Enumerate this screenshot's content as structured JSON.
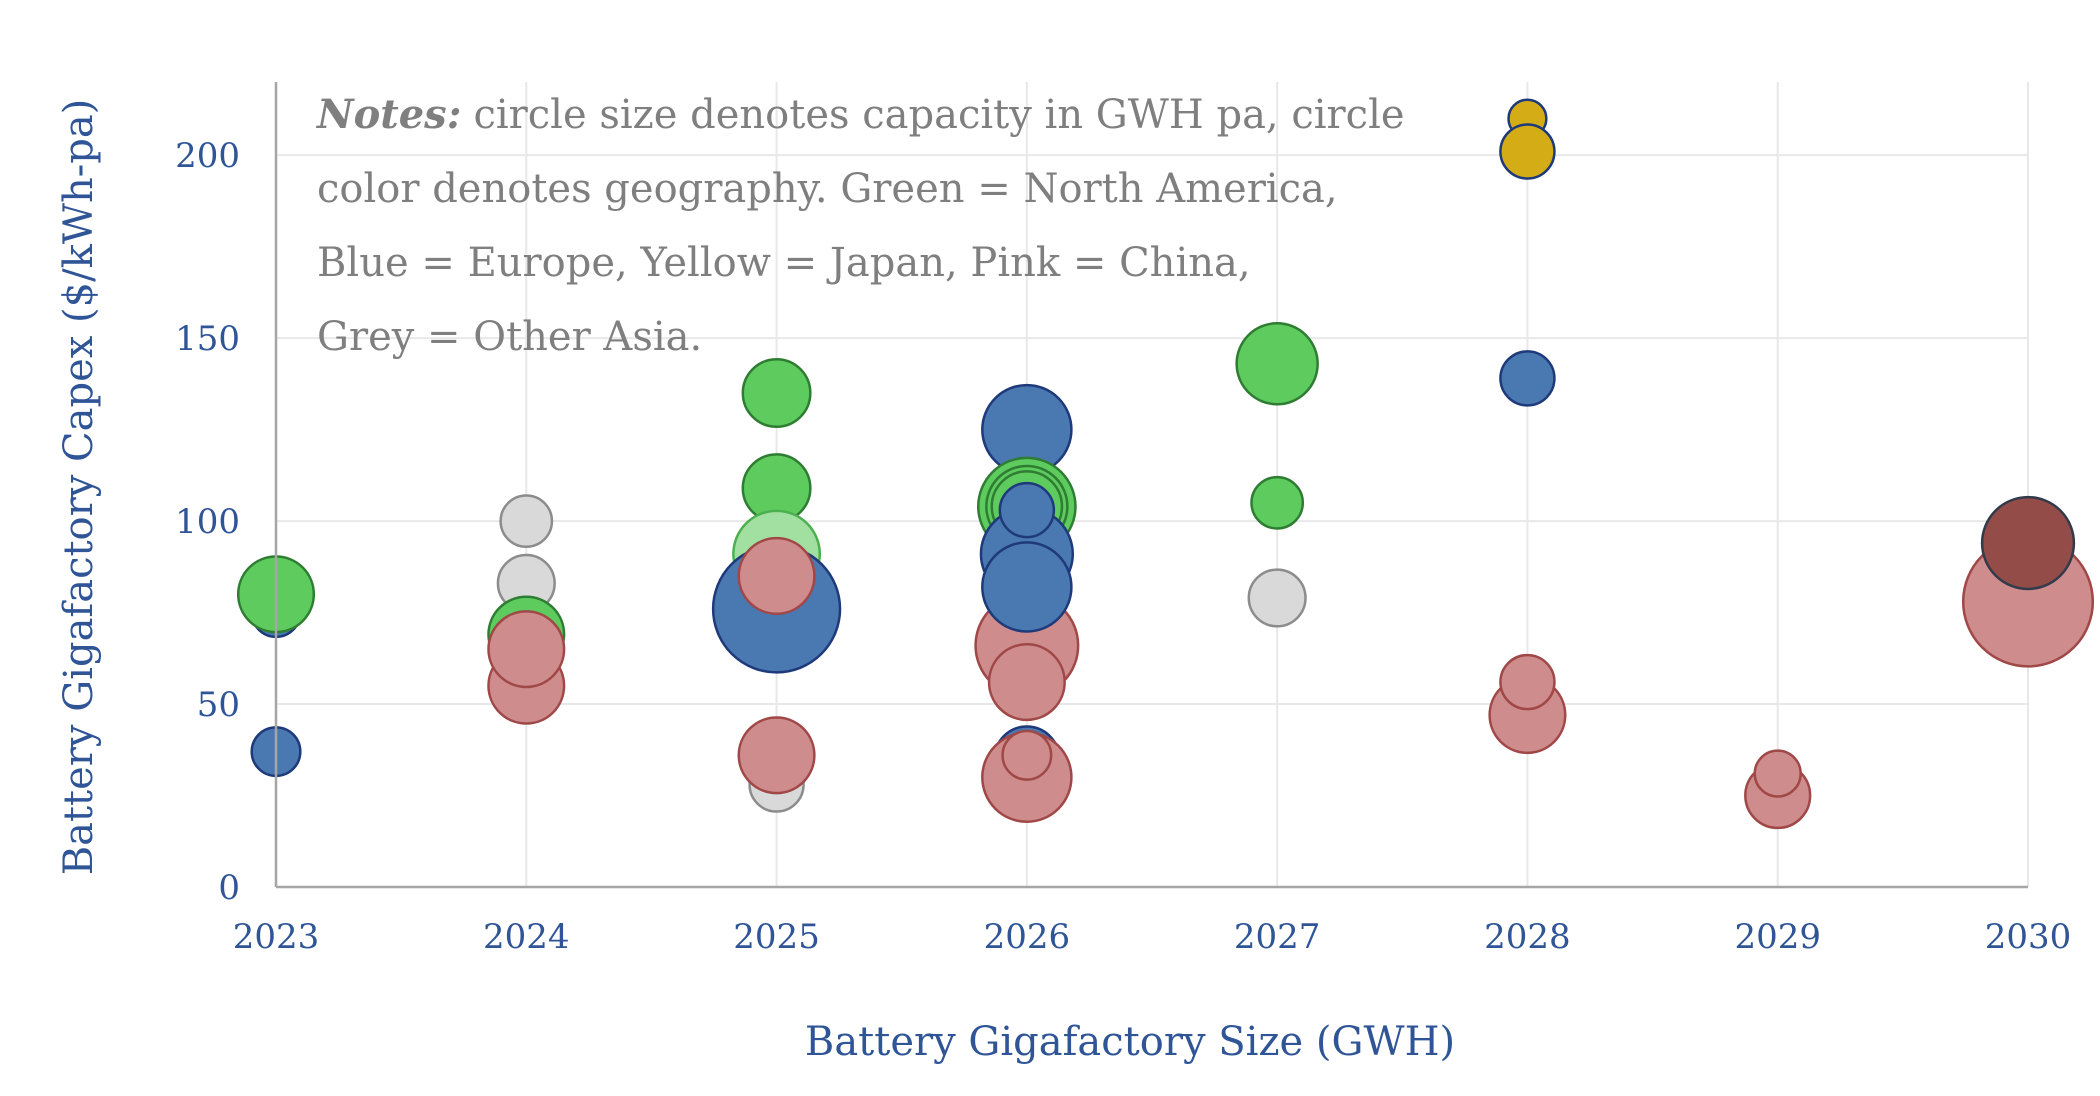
{
  "chart_data": {
    "type": "scatter",
    "variant": "bubble",
    "xlabel": "Battery Gigafactory Size (GWH)",
    "ylabel": "Battery Gigafactory Capex ($/kWh-pa)",
    "x_ticks": [
      "2023",
      "2024",
      "2025",
      "2026",
      "2027",
      "2028",
      "2029",
      "2030"
    ],
    "xlim": [
      2023,
      2030
    ],
    "ylim": [
      0,
      220
    ],
    "y_ticks": [
      0,
      50,
      100,
      150,
      200
    ],
    "grid": true,
    "notes": {
      "bold": "Notes:",
      "lines": [
        "circle size denotes capacity in GWH pa, circle",
        "color denotes geography. Green = North America,",
        "Blue = Europe, Yellow = Japan, Pink = China,",
        "Grey = Other Asia."
      ]
    },
    "colors": {
      "green": "#5ecb5e",
      "green_edge": "#2e7d32",
      "light_green": "#a2e0a2",
      "light_green_edge": "#4caf50",
      "blue": "#4a78b0",
      "blue_edge": "#1f3a7a",
      "yellow": "#d4ac16",
      "yellow_edge": "#1f3a7a",
      "pink": "#cf8c8c",
      "pink_edge": "#a04848",
      "grey": "#d9d9d9",
      "grey_edge": "#8c8c8c",
      "brown": "#934c48",
      "brown_edge": "#333a4a"
    },
    "points": [
      {
        "x": 2023,
        "y": 75,
        "size": 18,
        "color": "blue"
      },
      {
        "x": 2023,
        "y": 80,
        "size": 28,
        "color": "green"
      },
      {
        "x": 2023,
        "y": 37,
        "size": 18,
        "color": "blue"
      },
      {
        "x": 2024,
        "y": 100,
        "size": 19,
        "color": "grey"
      },
      {
        "x": 2024,
        "y": 83,
        "size": 21,
        "color": "grey"
      },
      {
        "x": 2024,
        "y": 69,
        "size": 28,
        "color": "green"
      },
      {
        "x": 2024,
        "y": 55,
        "size": 28,
        "color": "pink"
      },
      {
        "x": 2024,
        "y": 65,
        "size": 28,
        "color": "pink"
      },
      {
        "x": 2025,
        "y": 135,
        "size": 25,
        "color": "green"
      },
      {
        "x": 2025,
        "y": 109,
        "size": 25,
        "color": "green"
      },
      {
        "x": 2025,
        "y": 91,
        "size": 32,
        "color": "light_green"
      },
      {
        "x": 2025,
        "y": 76,
        "size": 47,
        "color": "blue"
      },
      {
        "x": 2025,
        "y": 85,
        "size": 28,
        "color": "pink"
      },
      {
        "x": 2025,
        "y": 28,
        "size": 20,
        "color": "grey"
      },
      {
        "x": 2025,
        "y": 36,
        "size": 28,
        "color": "pink"
      },
      {
        "x": 2026,
        "y": 125,
        "size": 33,
        "color": "blue"
      },
      {
        "x": 2026,
        "y": 104,
        "size": 36,
        "color": "green"
      },
      {
        "x": 2026,
        "y": 104,
        "size": 30,
        "color": "green"
      },
      {
        "x": 2026,
        "y": 104,
        "size": 26,
        "color": "green"
      },
      {
        "x": 2026,
        "y": 91,
        "size": 34,
        "color": "blue"
      },
      {
        "x": 2026,
        "y": 103,
        "size": 20,
        "color": "blue"
      },
      {
        "x": 2026,
        "y": 66,
        "size": 38,
        "color": "pink"
      },
      {
        "x": 2026,
        "y": 82,
        "size": 33,
        "color": "blue"
      },
      {
        "x": 2026,
        "y": 56,
        "size": 28,
        "color": "pink"
      },
      {
        "x": 2026,
        "y": 35,
        "size": 24,
        "color": "blue"
      },
      {
        "x": 2026,
        "y": 30,
        "size": 33,
        "color": "pink"
      },
      {
        "x": 2026,
        "y": 36,
        "size": 18,
        "color": "pink"
      },
      {
        "x": 2027,
        "y": 143,
        "size": 30,
        "color": "green"
      },
      {
        "x": 2027,
        "y": 105,
        "size": 19,
        "color": "green"
      },
      {
        "x": 2027,
        "y": 79,
        "size": 21,
        "color": "grey"
      },
      {
        "x": 2028,
        "y": 210,
        "size": 14,
        "color": "yellow"
      },
      {
        "x": 2028,
        "y": 201,
        "size": 20,
        "color": "yellow"
      },
      {
        "x": 2028,
        "y": 139,
        "size": 20,
        "color": "blue"
      },
      {
        "x": 2028,
        "y": 47,
        "size": 28,
        "color": "pink"
      },
      {
        "x": 2028,
        "y": 56,
        "size": 20,
        "color": "pink"
      },
      {
        "x": 2029,
        "y": 25,
        "size": 24,
        "color": "pink"
      },
      {
        "x": 2029,
        "y": 31,
        "size": 17,
        "color": "pink"
      },
      {
        "x": 2030,
        "y": 78,
        "size": 48,
        "color": "pink"
      },
      {
        "x": 2030,
        "y": 94,
        "size": 34,
        "color": "brown"
      }
    ]
  }
}
